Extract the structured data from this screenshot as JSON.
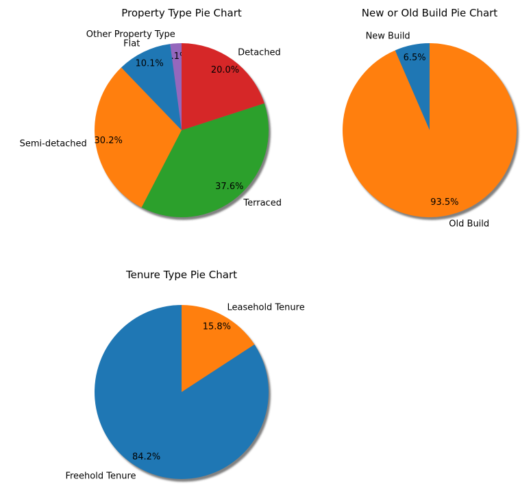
{
  "chart_data": [
    {
      "type": "pie",
      "title": "Property Type Pie Chart",
      "labels": [
        "Other Property Type",
        "Flat",
        "Semi-detached",
        "Terraced",
        "Detached"
      ],
      "values": [
        2.1,
        10.1,
        30.2,
        37.6,
        20.0
      ],
      "percent_labels": [
        "2.1%",
        "10.1%",
        "30.2%",
        "37.6%",
        "20.0%"
      ],
      "colors": [
        "#9467bd",
        "#1f77b4",
        "#ff7f0e",
        "#2ca02c",
        "#d62728"
      ],
      "start_angle_deg": 90,
      "direction": "counterclockwise",
      "shadow": true
    },
    {
      "type": "pie",
      "title": "New or Old Build Pie Chart",
      "labels": [
        "New Build",
        "Old Build"
      ],
      "values": [
        6.5,
        93.5
      ],
      "percent_labels": [
        "6.5%",
        "93.5%"
      ],
      "colors": [
        "#1f77b4",
        "#ff7f0e"
      ],
      "start_angle_deg": 90,
      "direction": "counterclockwise",
      "shadow": true
    },
    {
      "type": "pie",
      "title": "Tenure Type Pie Chart",
      "labels": [
        "Freehold Tenure",
        "Leasehold Tenure"
      ],
      "values": [
        84.2,
        15.8
      ],
      "percent_labels": [
        "84.2%",
        "15.8%"
      ],
      "colors": [
        "#1f77b4",
        "#ff7f0e"
      ],
      "start_angle_deg": 90,
      "direction": "counterclockwise",
      "shadow": true
    }
  ]
}
